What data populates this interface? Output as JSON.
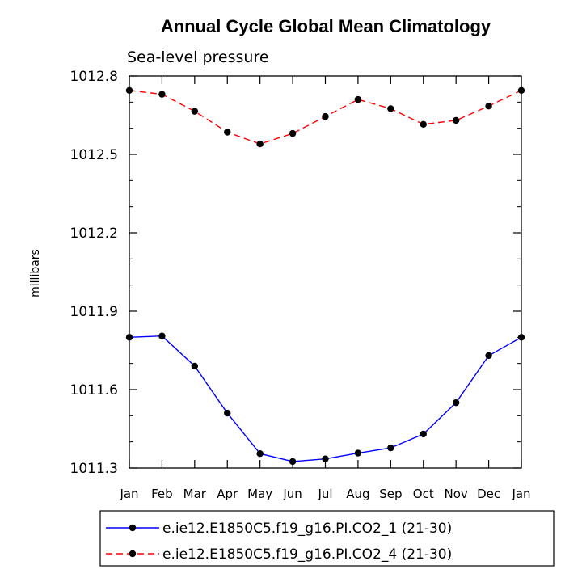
{
  "chart_data": {
    "type": "line",
    "title": "Annual Cycle Global Mean Climatology",
    "subtitle": "Sea-level pressure",
    "ylabel": "millibars",
    "xlabel": "",
    "categories": [
      "Jan",
      "Feb",
      "Mar",
      "Apr",
      "May",
      "Jun",
      "Jul",
      "Aug",
      "Sep",
      "Oct",
      "Nov",
      "Dec",
      "Jan"
    ],
    "ylim": [
      1011.3,
      1012.8
    ],
    "yticks": [
      "1011.3",
      "1011.6",
      "1011.9",
      "1012.2",
      "1012.5",
      "1012.8"
    ],
    "grid": false,
    "legend_placement": "bottom",
    "series": [
      {
        "name": "e.ie12.E1850C5.f19_g16.PI.CO2_1 (21-30)",
        "color": "#0000ff",
        "dash": "solid",
        "values": [
          1011.8,
          1011.805,
          1011.69,
          1011.51,
          1011.355,
          1011.325,
          1011.335,
          1011.357,
          1011.377,
          1011.43,
          1011.55,
          1011.73,
          1011.8
        ]
      },
      {
        "name": "e.ie12.E1850C5.f19_g16.PI.CO2_4 (21-30)",
        "color": "#ff0000",
        "dash": "dashed",
        "values": [
          1012.745,
          1012.73,
          1012.665,
          1012.585,
          1012.54,
          1012.58,
          1012.645,
          1012.71,
          1012.675,
          1012.615,
          1012.63,
          1012.685,
          1012.745
        ]
      }
    ]
  }
}
